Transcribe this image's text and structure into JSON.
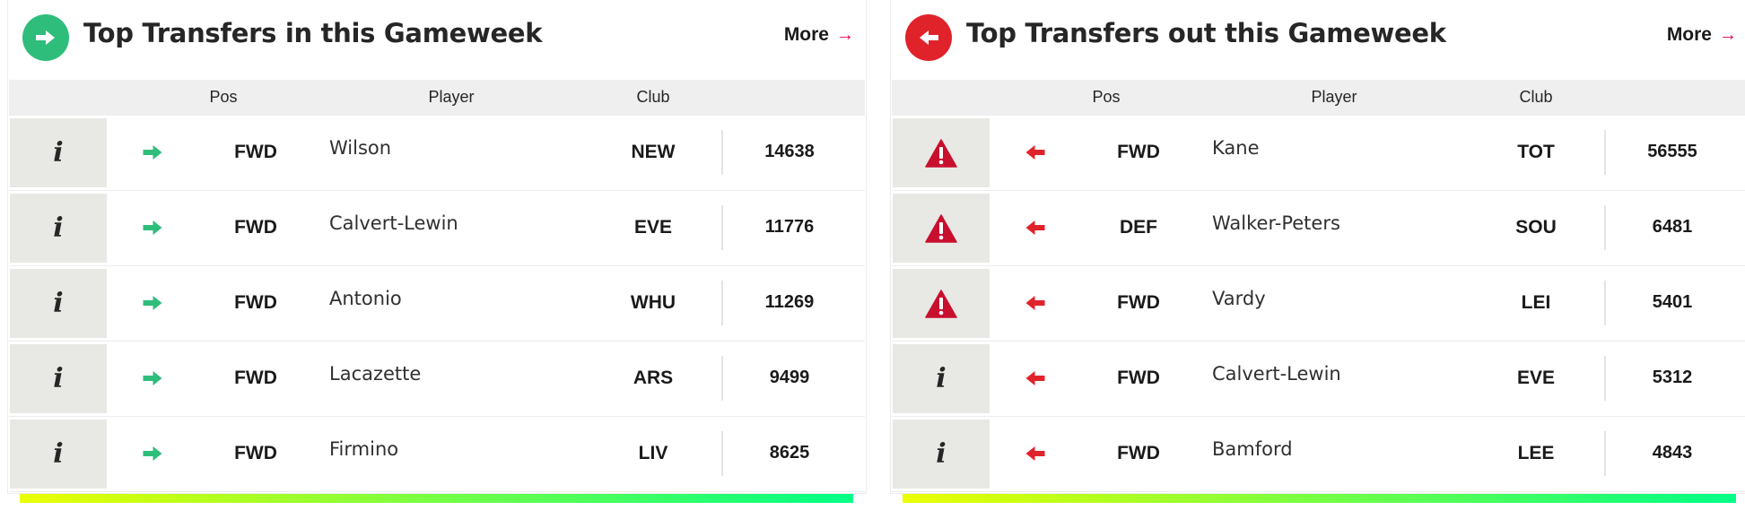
{
  "colors": {
    "in_accent": "#2fbd7b",
    "out_accent": "#e0232b",
    "more_arrow": "#e90052",
    "gradient_start": "#ebff00",
    "gradient_end": "#00ff87"
  },
  "columns": {
    "pos": "Pos",
    "player": "Player",
    "club": "Club"
  },
  "in_panel": {
    "title": "Top Transfers in this Gameweek",
    "more_label": "More",
    "more_icon": "arrow-right-icon",
    "badge_icon": "arrow-right-icon",
    "rows": [
      {
        "icon": "info-icon",
        "info": "i",
        "direction": "arrow-right-icon",
        "pos": "FWD",
        "player": "Wilson",
        "club": "NEW",
        "transfers": "14638"
      },
      {
        "icon": "info-icon",
        "info": "i",
        "direction": "arrow-right-icon",
        "pos": "FWD",
        "player": "Calvert-Lewin",
        "club": "EVE",
        "transfers": "11776"
      },
      {
        "icon": "info-icon",
        "info": "i",
        "direction": "arrow-right-icon",
        "pos": "FWD",
        "player": "Antonio",
        "club": "WHU",
        "transfers": "11269"
      },
      {
        "icon": "info-icon",
        "info": "i",
        "direction": "arrow-right-icon",
        "pos": "FWD",
        "player": "Lacazette",
        "club": "ARS",
        "transfers": "9499"
      },
      {
        "icon": "info-icon",
        "info": "i",
        "direction": "arrow-right-icon",
        "pos": "FWD",
        "player": "Firmino",
        "club": "LIV",
        "transfers": "8625"
      }
    ]
  },
  "out_panel": {
    "title": "Top Transfers out this Gameweek",
    "more_label": "More",
    "more_icon": "arrow-right-icon",
    "badge_icon": "arrow-left-icon",
    "rows": [
      {
        "icon": "warning-icon",
        "direction": "arrow-left-icon",
        "pos": "FWD",
        "player": "Kane",
        "club": "TOT",
        "transfers": "56555"
      },
      {
        "icon": "warning-icon",
        "direction": "arrow-left-icon",
        "pos": "DEF",
        "player": "Walker-Peters",
        "club": "SOU",
        "transfers": "6481"
      },
      {
        "icon": "warning-icon",
        "direction": "arrow-left-icon",
        "pos": "FWD",
        "player": "Vardy",
        "club": "LEI",
        "transfers": "5401"
      },
      {
        "icon": "info-icon",
        "info": "i",
        "direction": "arrow-left-icon",
        "pos": "FWD",
        "player": "Calvert-Lewin",
        "club": "EVE",
        "transfers": "5312"
      },
      {
        "icon": "info-icon",
        "info": "i",
        "direction": "arrow-left-icon",
        "pos": "FWD",
        "player": "Bamford",
        "club": "LEE",
        "transfers": "4843"
      }
    ]
  }
}
